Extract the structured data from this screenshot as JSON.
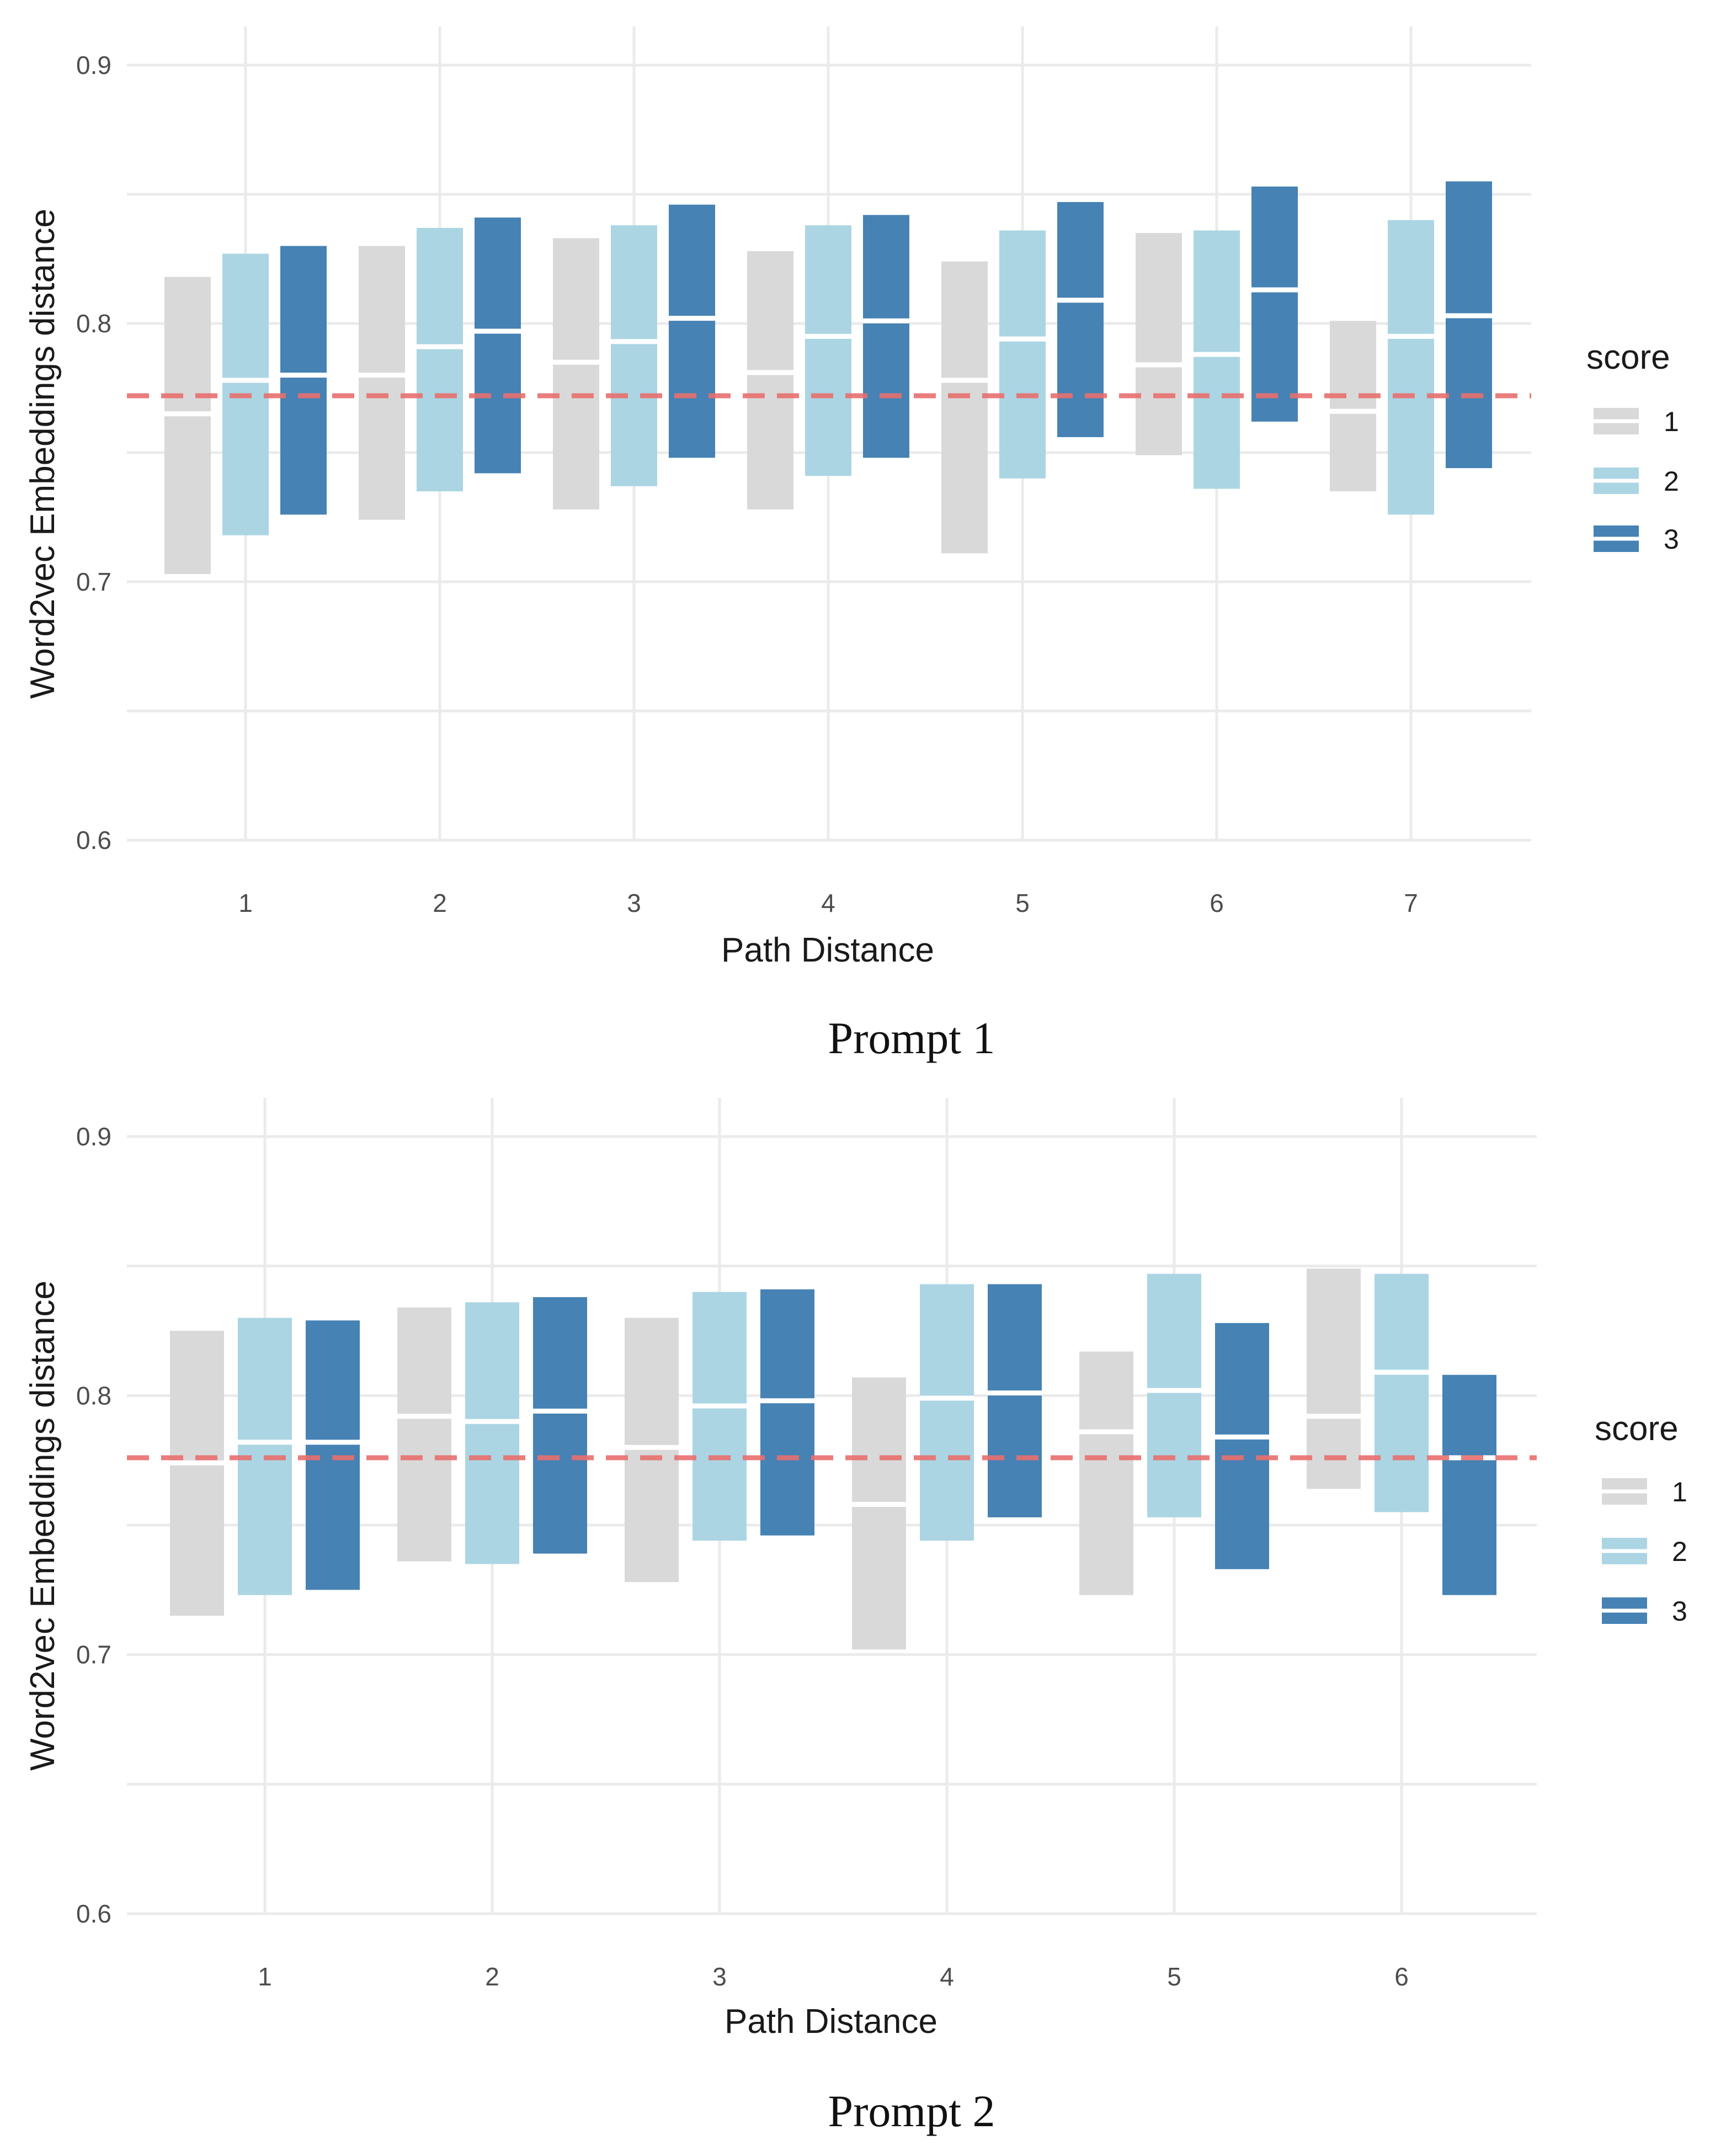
{
  "chart_data": [
    {
      "type": "crossbar",
      "caption": "Prompt 1",
      "xlabel": "Path Distance",
      "ylabel": "Word2vec Embeddings distance",
      "ylim": [
        0.6,
        0.9
      ],
      "yticks": [
        0.6,
        0.7,
        0.8,
        0.9
      ],
      "yticks_labels": [
        "0.6",
        "0.7",
        "0.8",
        "0.9"
      ],
      "categories": [
        "1",
        "2",
        "3",
        "4",
        "5",
        "6",
        "7"
      ],
      "reference_line": 0.772,
      "legend": {
        "title": "score",
        "entries": [
          "1",
          "2",
          "3"
        ]
      },
      "series": [
        {
          "name": "1",
          "color": "#d9d9d9",
          "low": [
            0.703,
            0.724,
            0.728,
            0.728,
            0.711,
            0.749,
            0.735
          ],
          "median": [
            0.765,
            0.78,
            0.785,
            0.781,
            0.778,
            0.784,
            0.766
          ],
          "high": [
            0.818,
            0.83,
            0.833,
            0.828,
            0.824,
            0.835,
            0.801
          ]
        },
        {
          "name": "2",
          "color": "#abd5e3",
          "low": [
            0.718,
            0.735,
            0.737,
            0.741,
            0.74,
            0.736,
            0.726
          ],
          "median": [
            0.778,
            0.791,
            0.793,
            0.795,
            0.794,
            0.788,
            0.795
          ],
          "high": [
            0.827,
            0.837,
            0.838,
            0.838,
            0.836,
            0.836,
            0.84
          ]
        },
        {
          "name": "3",
          "color": "#4682b4",
          "low": [
            0.726,
            0.742,
            0.748,
            0.748,
            0.756,
            0.762,
            0.744
          ],
          "median": [
            0.78,
            0.797,
            0.802,
            0.801,
            0.809,
            0.813,
            0.803
          ],
          "high": [
            0.83,
            0.841,
            0.846,
            0.842,
            0.847,
            0.853,
            0.855
          ]
        }
      ]
    },
    {
      "type": "crossbar",
      "caption": "Prompt 2",
      "xlabel": "Path Distance",
      "ylabel": "Word2vec Embeddings distance",
      "ylim": [
        0.6,
        0.9
      ],
      "yticks": [
        0.6,
        0.7,
        0.8,
        0.9
      ],
      "yticks_labels": [
        "0.6",
        "0.7",
        "0.8",
        "0.9"
      ],
      "categories": [
        "1",
        "2",
        "3",
        "4",
        "5",
        "6"
      ],
      "reference_line": 0.776,
      "legend": {
        "title": "score",
        "entries": [
          "1",
          "2",
          "3"
        ]
      },
      "series": [
        {
          "name": "1",
          "color": "#d9d9d9",
          "low": [
            0.715,
            0.736,
            0.728,
            0.702,
            0.723,
            0.764
          ],
          "median": [
            0.774,
            0.792,
            0.78,
            0.758,
            0.786,
            0.792
          ],
          "high": [
            0.825,
            0.834,
            0.83,
            0.807,
            0.817,
            0.849
          ]
        },
        {
          "name": "2",
          "color": "#abd5e3",
          "low": [
            0.723,
            0.735,
            0.744,
            0.744,
            0.753,
            0.755
          ],
          "median": [
            0.782,
            0.79,
            0.796,
            0.799,
            0.802,
            0.809
          ],
          "high": [
            0.83,
            0.836,
            0.84,
            0.843,
            0.847,
            0.847
          ]
        },
        {
          "name": "3",
          "color": "#4682b4",
          "low": [
            0.725,
            0.739,
            0.746,
            0.753,
            0.733,
            0.723
          ],
          "median": [
            0.782,
            0.794,
            0.798,
            0.801,
            0.784,
            0.776
          ],
          "high": [
            0.829,
            0.838,
            0.841,
            0.843,
            0.828,
            0.808
          ]
        }
      ]
    }
  ]
}
